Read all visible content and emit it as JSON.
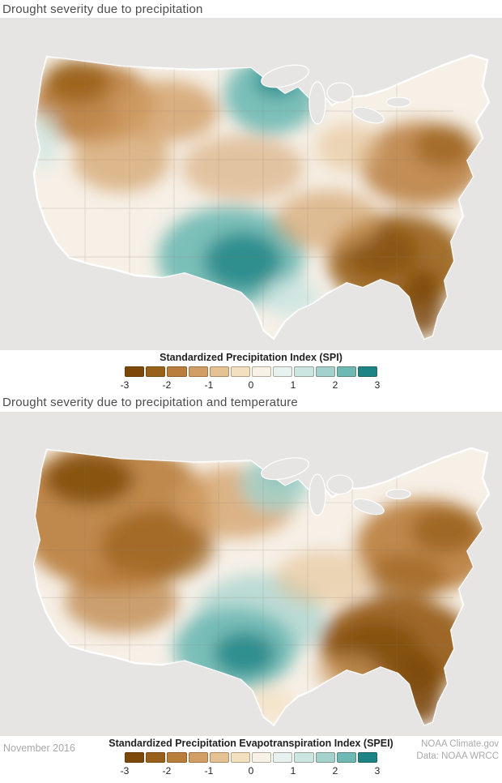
{
  "panels": [
    {
      "title": "Drought severity due to precipitation",
      "colorbar": {
        "label": "Standardized Precipitation Index (SPI)",
        "min": -3,
        "max": 3,
        "ticks": [
          "-3",
          "-2",
          "-1",
          "0",
          "1",
          "2",
          "3"
        ]
      }
    },
    {
      "title": "Drought severity due to precipitation and temperature",
      "colorbar": {
        "label": "Standardized Precipitation Evapotranspiration Index (SPEI)",
        "min": -3,
        "max": 3,
        "ticks": [
          "-3",
          "-2",
          "-1",
          "0",
          "1",
          "2",
          "3"
        ]
      }
    }
  ],
  "footer": {
    "date": "November 2016",
    "credit_line1": "NOAA Climate.gov",
    "credit_line2": "Data: NOAA WRCC"
  },
  "palette": [
    "#7b4808",
    "#99601a",
    "#b97d3c",
    "#d19f66",
    "#e5c293",
    "#f3e0c0",
    "#f8f1e5",
    "#e7f1ef",
    "#cbe5e1",
    "#a3d2cd",
    "#6fb9b4",
    "#1d8486"
  ],
  "colors": {
    "map_background": "#e6e5e3",
    "land_base": "#f6f0e7",
    "us_border": "#ffffff"
  }
}
